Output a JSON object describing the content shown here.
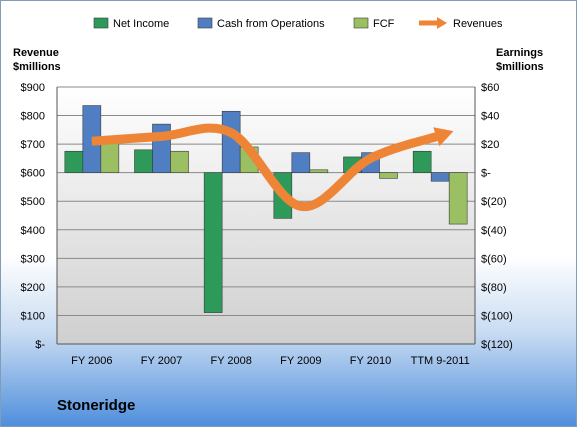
{
  "chart_data": {
    "type": "bar",
    "company": "Stoneridge",
    "categories": [
      "FY 2006",
      "FY 2007",
      "FY 2008",
      "FY 2009",
      "FY 2010",
      "TTM 9-2011"
    ],
    "y_left": {
      "label_line1": "Revenue",
      "label_line2": "$millions",
      "ticks": [
        "$-",
        "$100",
        "$200",
        "$300",
        "$400",
        "$500",
        "$600",
        "$700",
        "$800",
        "$900"
      ],
      "range": [
        0,
        900
      ]
    },
    "y_right": {
      "label_line1": "Earnings",
      "label_line2": "$millions",
      "ticks": [
        "$(120)",
        "$(100)",
        "$(80)",
        "$(60)",
        "$(40)",
        "$(20)",
        "$-",
        "$20",
        "$40",
        "$60"
      ],
      "range": [
        -120,
        60
      ]
    },
    "series": [
      {
        "name": "Net Income",
        "axis": "right",
        "color": "#2e9a5a",
        "values": [
          15,
          16,
          -98,
          -32,
          11,
          15
        ]
      },
      {
        "name": "Cash from Operations",
        "axis": "right",
        "color": "#4f7fc2",
        "values": [
          47,
          34,
          43,
          14,
          14,
          -6
        ]
      },
      {
        "name": "FCF",
        "axis": "right",
        "color": "#9bbf63",
        "values": [
          22,
          15,
          18,
          2,
          -4,
          -36
        ]
      },
      {
        "name": "Revenues",
        "axis": "left",
        "type": "line",
        "color": "#ee8435",
        "values": [
          710,
          727,
          740,
          482,
          650,
          730
        ]
      }
    ],
    "grid": true,
    "legend": "top"
  }
}
